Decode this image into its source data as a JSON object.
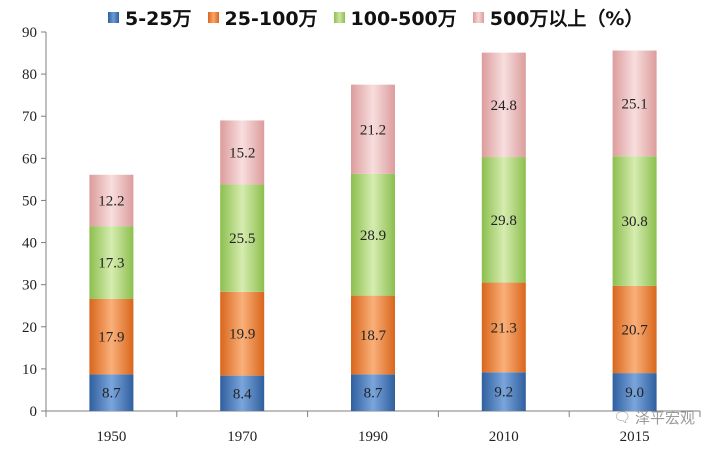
{
  "legend": [
    {
      "label": "5-25万",
      "color": "#3f76c0"
    },
    {
      "label": "25-100万",
      "color": "#f07f33"
    },
    {
      "label": "100-500万",
      "color": "#a6cf6b"
    },
    {
      "label": "500万以上（%）",
      "color": "#e6b2b2"
    }
  ],
  "watermark": {
    "text": "泽平宏观",
    "icon": "chat-bubble-icon"
  },
  "chart_data": {
    "type": "bar",
    "stacked": true,
    "title": "",
    "xlabel": "",
    "ylabel": "",
    "ylim": [
      0,
      90
    ],
    "yticks": [
      0,
      10,
      20,
      30,
      40,
      50,
      60,
      70,
      80,
      90
    ],
    "grid": false,
    "legend_position": "top",
    "categories": [
      "1950",
      "1970",
      "1990",
      "2010",
      "2015"
    ],
    "series": [
      {
        "name": "5-25万",
        "values": [
          8.7,
          8.4,
          8.7,
          9.2,
          9.0
        ],
        "color": "#3f76c0"
      },
      {
        "name": "25-100万",
        "values": [
          17.9,
          19.9,
          18.7,
          21.3,
          20.7
        ],
        "color": "#f07f33"
      },
      {
        "name": "100-500万",
        "values": [
          17.3,
          25.5,
          28.9,
          29.8,
          30.8
        ],
        "color": "#a6cf6b"
      },
      {
        "name": "500万以上（%）",
        "values": [
          12.2,
          15.2,
          21.2,
          24.8,
          25.1
        ],
        "color": "#e6b2b2"
      }
    ]
  }
}
